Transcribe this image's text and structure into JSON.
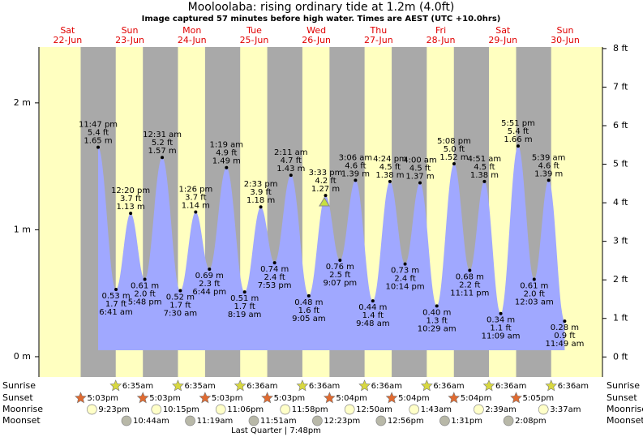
{
  "chart_data": {
    "type": "tide",
    "title": "Mooloolaba: rising  ordinary tide at 1.2m (4.0ft)",
    "subtitle": "Image captured 57 minutes before high water. Times are AEST (UTC +10.0hrs)",
    "days": [
      {
        "weekday": "Sat",
        "date": "22-Jun"
      },
      {
        "weekday": "Sun",
        "date": "23-Jun"
      },
      {
        "weekday": "Mon",
        "date": "24-Jun"
      },
      {
        "weekday": "Tue",
        "date": "25-Jun"
      },
      {
        "weekday": "Wed",
        "date": "26-Jun"
      },
      {
        "weekday": "Thu",
        "date": "27-Jun"
      },
      {
        "weekday": "Fri",
        "date": "28-Jun"
      },
      {
        "weekday": "Sat",
        "date": "29-Jun"
      },
      {
        "weekday": "Sun",
        "date": "30-Jun"
      }
    ],
    "tides": {
      "day": [
        0,
        1,
        1,
        1,
        2,
        2,
        2,
        2,
        3,
        3,
        3,
        3,
        4,
        4,
        4,
        4,
        5,
        5,
        5,
        5,
        6,
        6,
        6,
        6,
        7,
        7,
        7,
        8,
        8,
        8
      ],
      "times": [
        "11:47 pm",
        "6:41 am",
        "12:20 pm",
        "5:48 pm",
        "12:31 am",
        "7:30 am",
        "1:26 pm",
        "6:44 pm",
        "1:19 am",
        "8:19 am",
        "2:33 pm",
        "7:53 pm",
        "2:11 am",
        "9:05 am",
        "3:33 pm",
        "9:07 pm",
        "3:06 am",
        "9:48 am",
        "4:24 pm",
        "10:14 pm",
        "4:00 am",
        "10:29 am",
        "5:08 pm",
        "11:11 pm",
        "4:51 am",
        "11:09 am",
        "5:51 pm",
        "12:03 am",
        "5:39 am",
        "11:49 am"
      ],
      "kind": [
        "high",
        "low",
        "high",
        "low",
        "high",
        "low",
        "high",
        "low",
        "high",
        "low",
        "high",
        "low",
        "high",
        "low",
        "high",
        "low",
        "high",
        "low",
        "high",
        "low",
        "high",
        "low",
        "high",
        "low",
        "high",
        "low",
        "high",
        "low",
        "high",
        "low"
      ],
      "values": [
        1.65,
        0.53,
        1.13,
        0.61,
        1.57,
        0.52,
        1.14,
        0.69,
        1.49,
        0.51,
        1.18,
        0.74,
        1.43,
        0.48,
        1.27,
        0.76,
        1.39,
        0.44,
        1.38,
        0.73,
        1.37,
        0.4,
        1.52,
        0.68,
        1.38,
        0.34,
        1.66,
        0.61,
        1.39,
        0.28
      ],
      "value_labels": [
        "1.65 m",
        "0.53 m",
        "1.13 m",
        "0.61 m",
        "1.57 m",
        "0.52 m",
        "1.14 m",
        "0.69 m",
        "1.49 m",
        "0.51 m",
        "1.18 m",
        "0.74 m",
        "1.43 m",
        "0.48 m",
        "1.27 m",
        "0.76 m",
        "1.39 m",
        "0.44 m",
        "1.38 m",
        "0.73 m",
        "1.37 m",
        "0.40 m",
        "1.52 m",
        "0.68 m",
        "1.38 m",
        "0.34 m",
        "1.66 m",
        "0.61 m",
        "1.39 m",
        "0.28 m"
      ],
      "ft_labels": [
        "5.4 ft",
        "1.7 ft",
        "3.7 ft",
        "2.0 ft",
        "5.2 ft",
        "1.7 ft",
        "3.7 ft",
        "2.3 ft",
        "4.9 ft",
        "1.7 ft",
        "3.9 ft",
        "2.4 ft",
        "4.7 ft",
        "1.6 ft",
        "4.2 ft",
        "2.5 ft",
        "4.6 ft",
        "1.4 ft",
        "4.5 ft",
        "2.4 ft",
        "4.5 ft",
        "1.3 ft",
        "5.0 ft",
        "2.2 ft",
        "4.5 ft",
        "1.1 ft",
        "5.4 ft",
        "2.0 ft",
        "4.6 ft",
        "0.9 ft"
      ],
      "color": "#a0a8ff"
    },
    "ylim": [
      -0.16,
      2.44
    ],
    "yticks": [
      {
        "value": 0,
        "label": "0 m"
      },
      {
        "value": 1,
        "label": "1 m"
      },
      {
        "value": 2,
        "label": "2 m"
      }
    ],
    "y2lim": [
      -0.52,
      8.04
    ],
    "y2ticks": [
      {
        "value": 0,
        "label": "0 ft"
      },
      {
        "value": 1,
        "label": "1 ft"
      },
      {
        "value": 2,
        "label": "2 ft"
      },
      {
        "value": 3,
        "label": "3 ft"
      },
      {
        "value": 4,
        "label": "4 ft"
      },
      {
        "value": 5,
        "label": "5 ft"
      },
      {
        "value": 6,
        "label": "6 ft"
      },
      {
        "value": 7,
        "label": "7 ft"
      },
      {
        "value": 8,
        "label": "8 ft"
      }
    ],
    "events": [
      {
        "name": "Sunrise",
        "icon": "sunrise",
        "day": [
          1,
          2,
          3,
          4,
          5,
          6,
          7,
          8
        ],
        "times": [
          "6:35am",
          "6:35am",
          "6:36am",
          "6:36am",
          "6:36am",
          "6:36am",
          "6:36am",
          "6:36am"
        ]
      },
      {
        "name": "Sunset",
        "icon": "sunset",
        "day": [
          0,
          1,
          2,
          3,
          4,
          5,
          6,
          7
        ],
        "times": [
          "5:03pm",
          "5:03pm",
          "5:03pm",
          "5:03pm",
          "5:04pm",
          "5:04pm",
          "5:04pm",
          "5:05pm"
        ]
      },
      {
        "name": "Moonrise",
        "icon": "moonrise",
        "day": [
          0,
          1,
          2,
          3,
          5,
          6,
          7,
          8
        ],
        "times": [
          "9:23pm",
          "10:15pm",
          "11:06pm",
          "11:58pm",
          "12:50am",
          "1:43am",
          "2:39am",
          "3:37am"
        ]
      },
      {
        "name": "Moonset",
        "icon": "moonset",
        "day": [
          1,
          2,
          3,
          4,
          5,
          6,
          7
        ],
        "times": [
          "10:44am",
          "11:19am",
          "11:51am",
          "12:23pm",
          "12:56pm",
          "1:31pm",
          "2:08pm"
        ]
      }
    ],
    "moon_phase": "Last Quarter | 7:48pm"
  }
}
